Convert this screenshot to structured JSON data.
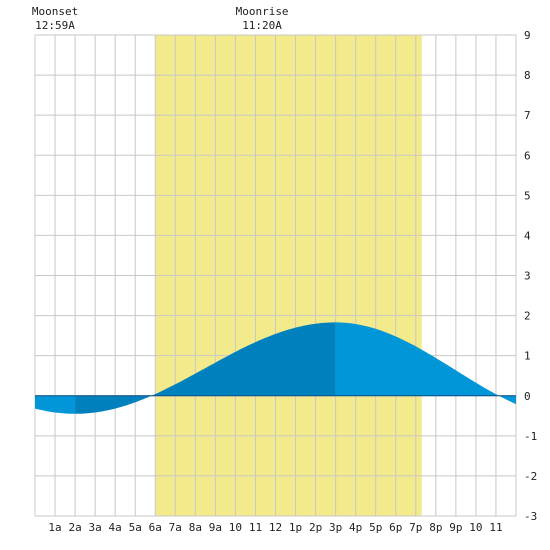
{
  "chart_data": {
    "type": "area",
    "moon_events": [
      {
        "label": "Moonset",
        "time": "12:59A",
        "hour": 1.0
      },
      {
        "label": "Moonrise",
        "time": "11:20A",
        "hour": 11.33
      }
    ],
    "daylight": {
      "start_hour": 6.0,
      "end_hour": 19.3
    },
    "x_tick_labels": [
      "1a",
      "2a",
      "3a",
      "4a",
      "5a",
      "6a",
      "7a",
      "8a",
      "9a",
      "10",
      "11",
      "12",
      "1p",
      "2p",
      "3p",
      "4p",
      "5p",
      "6p",
      "7p",
      "8p",
      "9p",
      "10",
      "11"
    ],
    "y_tick_labels": [
      "9",
      "8",
      "7",
      "6",
      "5",
      "4",
      "3",
      "2",
      "1",
      "0",
      "-1",
      "-2",
      "-3"
    ],
    "xlim": [
      0,
      24
    ],
    "ylim": [
      -3,
      9
    ],
    "tide": {
      "low": {
        "hour": 2.0,
        "value": -0.45
      },
      "high": {
        "hour": 15.0,
        "value": 1.83
      },
      "end": {
        "hour": 24.0,
        "value": 0.0
      }
    },
    "colors": {
      "daylight": "#f3ea8b",
      "grid": "#c8c8c8",
      "tide_light": "#0096d8",
      "tide_dark": "#0081bd",
      "axis_text": "#222222"
    }
  }
}
